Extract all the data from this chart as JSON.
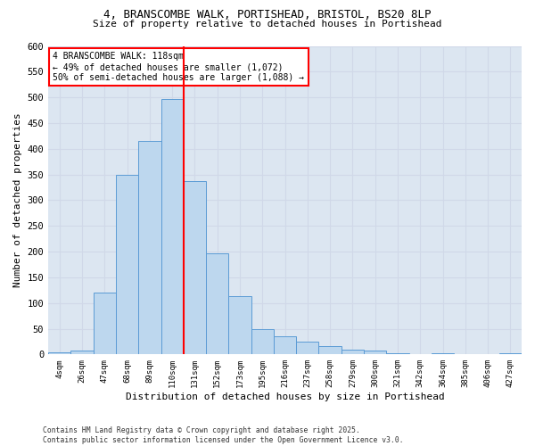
{
  "title_line1": "4, BRANSCOMBE WALK, PORTISHEAD, BRISTOL, BS20 8LP",
  "title_line2": "Size of property relative to detached houses in Portishead",
  "xlabel": "Distribution of detached houses by size in Portishead",
  "ylabel": "Number of detached properties",
  "categories": [
    "4sqm",
    "26sqm",
    "47sqm",
    "68sqm",
    "89sqm",
    "110sqm",
    "131sqm",
    "152sqm",
    "173sqm",
    "195sqm",
    "216sqm",
    "237sqm",
    "258sqm",
    "279sqm",
    "300sqm",
    "321sqm",
    "342sqm",
    "364sqm",
    "385sqm",
    "406sqm",
    "427sqm"
  ],
  "values": [
    4,
    8,
    120,
    350,
    416,
    497,
    337,
    196,
    114,
    50,
    35,
    25,
    16,
    10,
    7,
    3,
    0,
    2,
    1,
    1,
    2
  ],
  "bar_color": "#bdd7ee",
  "bar_edge_color": "#5b9bd5",
  "vline_color": "#ff0000",
  "annotation_text": "4 BRANSCOMBE WALK: 118sqm\n← 49% of detached houses are smaller (1,072)\n50% of semi-detached houses are larger (1,088) →",
  "annotation_box_color": "#ffffff",
  "annotation_box_edge_color": "#ff0000",
  "grid_color": "#d0d8e8",
  "background_color": "#ffffff",
  "plot_background_color": "#dce6f1",
  "ylim": [
    0,
    600
  ],
  "yticks": [
    0,
    50,
    100,
    150,
    200,
    250,
    300,
    350,
    400,
    450,
    500,
    550,
    600
  ],
  "footnote_line1": "Contains HM Land Registry data © Crown copyright and database right 2025.",
  "footnote_line2": "Contains public sector information licensed under the Open Government Licence v3.0."
}
